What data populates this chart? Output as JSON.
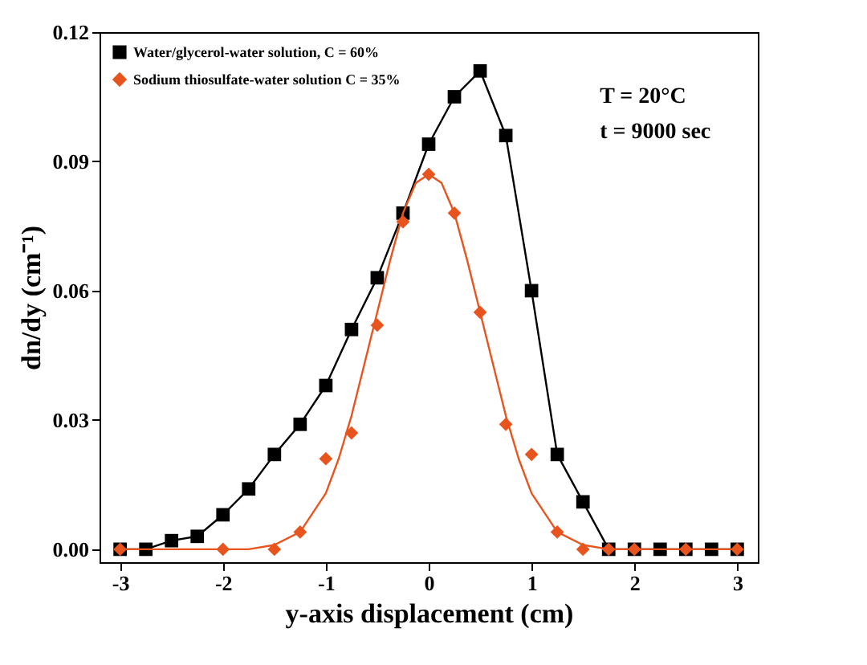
{
  "chart_data": {
    "type": "line",
    "xlabel": "y-axis displacement (cm)",
    "ylabel": "dn/dy (cm⁻¹)",
    "xlim": [
      -3.2,
      3.2
    ],
    "xticks": [
      -3,
      -2,
      -1,
      0,
      1,
      2,
      3
    ],
    "ylim": [
      -0.003,
      0.12
    ],
    "yticks": [
      {
        "value": 0,
        "label": "0.00"
      },
      {
        "value": 0.03,
        "label": "0.03"
      },
      {
        "value": 0.06,
        "label": "0.06"
      },
      {
        "value": 0.09,
        "label": "0.09"
      },
      {
        "value": 0.12,
        "label": "0.12"
      }
    ],
    "legend": "top left",
    "grid": false,
    "annotations": [
      "T = 20°C",
      "t = 9000 sec"
    ],
    "series": [
      {
        "name": "Water/glycerol-water solution, C = 60%",
        "marker": "square",
        "color": "#000000",
        "x": [
          -3,
          -2.75,
          -2.5,
          -2.25,
          -2,
          -1.75,
          -1.5,
          -1.25,
          -1,
          -0.75,
          -0.5,
          -0.25,
          0,
          0.25,
          0.5,
          0.75,
          1,
          1.25,
          1.5,
          1.75,
          2,
          2.25,
          2.5,
          2.75,
          3
        ],
        "values": [
          0,
          0,
          0.002,
          0.003,
          0.008,
          0.014,
          0.022,
          0.029,
          0.038,
          0.051,
          0.063,
          0.078,
          0.094,
          0.105,
          0.111,
          0.096,
          0.06,
          0.022,
          0.011,
          0,
          0,
          0,
          0,
          0,
          0
        ]
      },
      {
        "name": "Sodium thiosulfate-water solution C = 35%",
        "type": "scatter",
        "marker": "diamond",
        "color": "#e8541e",
        "x": [
          -3,
          -2,
          -1.5,
          -1.25,
          -1,
          -0.75,
          -0.5,
          -0.25,
          0,
          0.25,
          0.5,
          0.75,
          1,
          1.25,
          1.5,
          1.75,
          2,
          2.5,
          3
        ],
        "values": [
          0,
          0,
          0,
          0.004,
          0.021,
          0.027,
          0.052,
          0.076,
          0.087,
          0.078,
          0.055,
          0.029,
          0.022,
          0.004,
          0,
          0,
          0,
          0,
          0
        ]
      },
      {
        "marker": "none",
        "color": "#e8541e",
        "x": [
          -3,
          -2,
          -1.75,
          -1.5,
          -1.25,
          -1,
          -0.875,
          -0.75,
          -0.625,
          -0.5,
          -0.375,
          -0.25,
          -0.125,
          0,
          0.125,
          0.25,
          0.375,
          0.5,
          0.625,
          0.75,
          0.875,
          1,
          1.25,
          1.5,
          1.75,
          2,
          3
        ],
        "values": [
          0,
          0,
          0,
          0.001,
          0.004,
          0.013,
          0.021,
          0.031,
          0.043,
          0.055,
          0.067,
          0.078,
          0.085,
          0.087,
          0.085,
          0.078,
          0.067,
          0.055,
          0.043,
          0.031,
          0.021,
          0.013,
          0.004,
          0.001,
          0,
          0,
          0
        ]
      }
    ]
  }
}
